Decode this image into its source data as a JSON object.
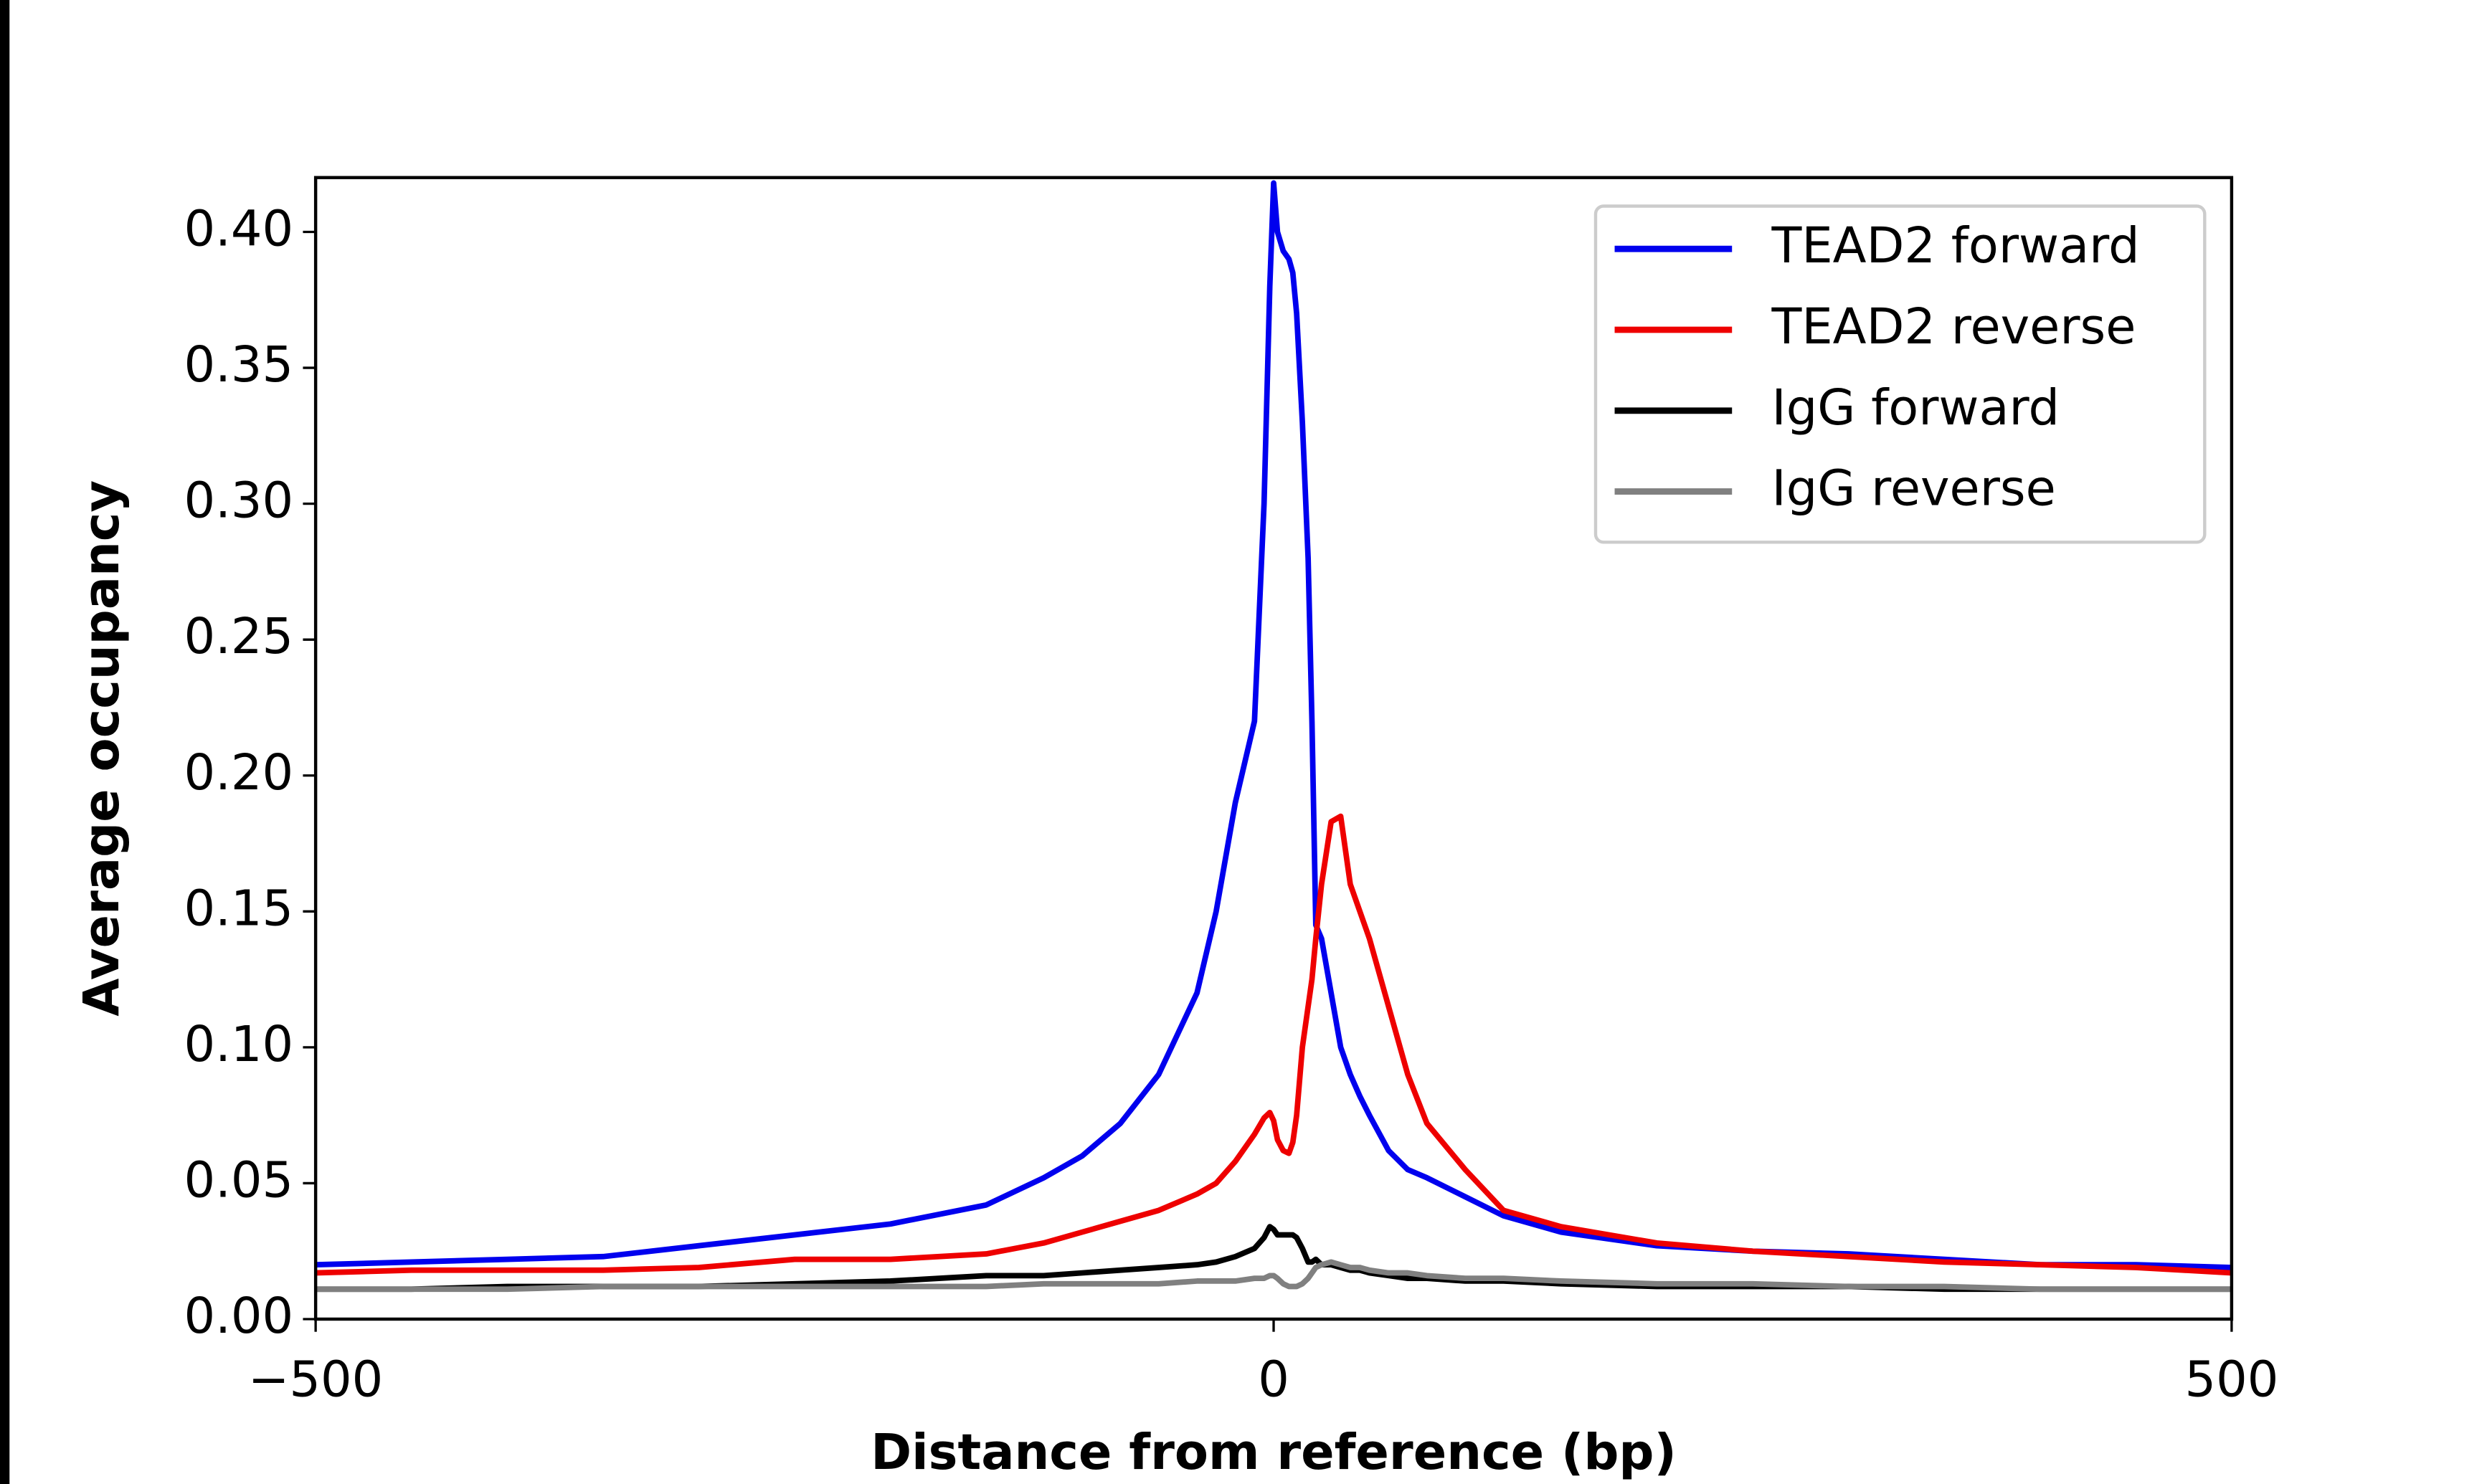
{
  "chart_data": {
    "type": "line",
    "xlabel": "Distance from reference (bp)",
    "ylabel": "Average occupancy",
    "x": [
      -500,
      -450,
      -400,
      -350,
      -300,
      -250,
      -200,
      -150,
      -120,
      -100,
      -80,
      -60,
      -40,
      -30,
      -20,
      -10,
      -5,
      -2,
      0,
      2,
      5,
      8,
      10,
      12,
      15,
      18,
      20,
      22,
      25,
      30,
      35,
      40,
      45,
      50,
      60,
      70,
      80,
      100,
      120,
      150,
      200,
      250,
      300,
      350,
      400,
      450,
      500
    ],
    "series": [
      {
        "name": "TEAD2 forward",
        "color": "#0000ee",
        "values": [
          0.02,
          0.021,
          0.022,
          0.023,
          0.027,
          0.031,
          0.035,
          0.042,
          0.052,
          0.06,
          0.072,
          0.09,
          0.12,
          0.15,
          0.19,
          0.22,
          0.3,
          0.38,
          0.418,
          0.4,
          0.393,
          0.39,
          0.385,
          0.37,
          0.33,
          0.28,
          0.22,
          0.145,
          0.14,
          0.12,
          0.1,
          0.09,
          0.082,
          0.075,
          0.062,
          0.055,
          0.052,
          0.045,
          0.038,
          0.032,
          0.027,
          0.025,
          0.024,
          0.022,
          0.02,
          0.02,
          0.019
        ]
      },
      {
        "name": "TEAD2 reverse",
        "color": "#ee0000",
        "values": [
          0.017,
          0.018,
          0.018,
          0.018,
          0.019,
          0.022,
          0.022,
          0.024,
          0.028,
          0.032,
          0.036,
          0.04,
          0.046,
          0.05,
          0.058,
          0.068,
          0.074,
          0.076,
          0.073,
          0.066,
          0.062,
          0.061,
          0.065,
          0.075,
          0.1,
          0.115,
          0.125,
          0.14,
          0.16,
          0.183,
          0.185,
          0.16,
          0.15,
          0.14,
          0.115,
          0.09,
          0.072,
          0.055,
          0.04,
          0.034,
          0.028,
          0.025,
          0.023,
          0.021,
          0.02,
          0.019,
          0.017
        ]
      },
      {
        "name": "IgG forward",
        "color": "#000000",
        "values": [
          0.011,
          0.011,
          0.012,
          0.012,
          0.012,
          0.013,
          0.014,
          0.016,
          0.016,
          0.017,
          0.018,
          0.019,
          0.02,
          0.021,
          0.023,
          0.026,
          0.03,
          0.034,
          0.033,
          0.031,
          0.031,
          0.031,
          0.031,
          0.03,
          0.026,
          0.021,
          0.021,
          0.022,
          0.02,
          0.02,
          0.019,
          0.018,
          0.018,
          0.017,
          0.016,
          0.015,
          0.015,
          0.014,
          0.014,
          0.013,
          0.012,
          0.012,
          0.012,
          0.011,
          0.011,
          0.011,
          0.011
        ]
      },
      {
        "name": "IgG reverse",
        "color": "#808080",
        "values": [
          0.011,
          0.011,
          0.011,
          0.012,
          0.012,
          0.012,
          0.012,
          0.012,
          0.013,
          0.013,
          0.013,
          0.013,
          0.014,
          0.014,
          0.014,
          0.015,
          0.015,
          0.016,
          0.016,
          0.015,
          0.013,
          0.012,
          0.012,
          0.012,
          0.013,
          0.015,
          0.017,
          0.019,
          0.02,
          0.021,
          0.02,
          0.019,
          0.019,
          0.018,
          0.017,
          0.017,
          0.016,
          0.015,
          0.015,
          0.014,
          0.013,
          0.013,
          0.012,
          0.012,
          0.011,
          0.011,
          0.011
        ]
      }
    ],
    "xlim": [
      -500,
      500
    ],
    "xticks": [
      {
        "value": -500,
        "label": "−500"
      },
      0,
      500
    ],
    "ylim": [
      0,
      0.42
    ],
    "yticks": [
      {
        "value": 0,
        "label": "0.00"
      },
      {
        "value": 0.05,
        "label": "0.05"
      },
      {
        "value": 0.1,
        "label": "0.10"
      },
      {
        "value": 0.15,
        "label": "0.15"
      },
      {
        "value": 0.2,
        "label": "0.20"
      },
      {
        "value": 0.25,
        "label": "0.25"
      },
      {
        "value": 0.3,
        "label": "0.30"
      },
      {
        "value": 0.35,
        "label": "0.35"
      },
      {
        "value": 0.4,
        "label": "0.40"
      }
    ],
    "legend": "upper right",
    "grid": false
  }
}
